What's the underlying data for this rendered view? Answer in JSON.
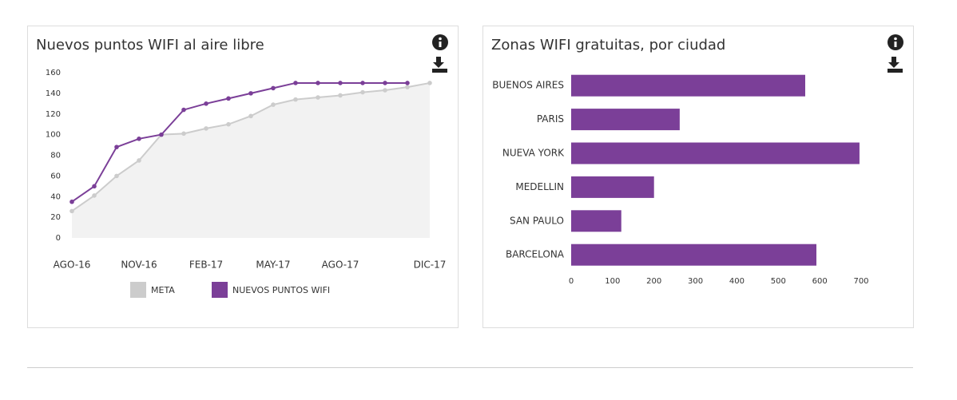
{
  "chart_data": [
    {
      "type": "line",
      "title": "Nuevos puntos WIFI al aire libre",
      "categories": [
        "AGO-16",
        null,
        null,
        "NOV-16",
        null,
        null,
        "FEB-17",
        null,
        null,
        "MAY-17",
        null,
        null,
        "AGO-17",
        null,
        null,
        null,
        "DIC-17"
      ],
      "series": [
        {
          "name": "META",
          "color": "#cccccc",
          "area": true,
          "values": [
            26,
            41,
            60,
            75,
            100,
            101,
            106,
            110,
            118,
            129,
            134,
            136,
            138,
            141,
            143,
            146,
            150
          ]
        },
        {
          "name": "NUEVOS PUNTOS WIFI",
          "color": "#7b3f98",
          "values": [
            35,
            50,
            88,
            96,
            100,
            124,
            130,
            135,
            140,
            145,
            150,
            150,
            150,
            150,
            150,
            150,
            null
          ]
        }
      ],
      "ylim": [
        0,
        160
      ],
      "yticks": [
        0,
        20,
        40,
        60,
        80,
        100,
        120,
        140,
        160
      ],
      "grid": false,
      "legend": "bottom"
    },
    {
      "type": "hbar",
      "title": "Zonas WIFI gratuitas, por ciudad",
      "categories": [
        "BUENOS AIRES",
        "PARIS",
        "NUEVA YORK",
        "MEDELLIN",
        "SAN PAULO",
        "BARCELONA"
      ],
      "values": [
        565,
        262,
        696,
        200,
        121,
        592
      ],
      "color": "#7b3f98",
      "xlim": [
        0,
        700
      ],
      "xticks": [
        0,
        100,
        200,
        300,
        400,
        500,
        600,
        700
      ],
      "grid": false
    }
  ]
}
